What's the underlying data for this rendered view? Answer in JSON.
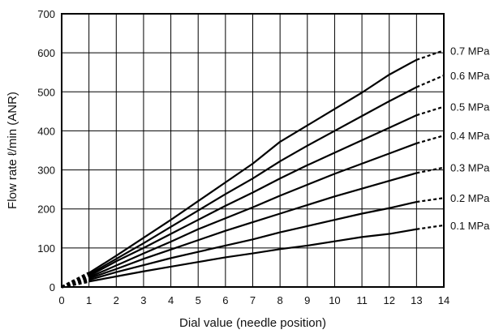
{
  "chart_data": {
    "type": "line",
    "title": "",
    "xlabel": "Dial value (needle position)",
    "ylabel": "Flow rate ℓ/min (ANR)",
    "xlim": [
      0,
      14
    ],
    "ylim": [
      0,
      700
    ],
    "x_ticks": [
      "0",
      "1",
      "2",
      "3",
      "4",
      "5",
      "6",
      "7",
      "8",
      "9",
      "10",
      "11",
      "12",
      "13",
      "14"
    ],
    "y_ticks": [
      "0",
      "100",
      "200",
      "300",
      "400",
      "500",
      "600",
      "700"
    ],
    "grid": true,
    "legend": "right-edge labels",
    "x": [
      1,
      2,
      3,
      4,
      5,
      6,
      7,
      8,
      9,
      10,
      11,
      12,
      13
    ],
    "dashed_extension_to_x": 14,
    "series": [
      {
        "name": "0.1 MPa",
        "values": [
          14,
          27,
          40,
          52,
          64,
          76,
          86,
          97,
          106,
          117,
          128,
          136,
          148
        ],
        "end_value": 158
      },
      {
        "name": "0.2 MPa",
        "values": [
          18,
          38,
          56,
          74,
          90,
          106,
          122,
          140,
          156,
          172,
          188,
          202,
          218
        ],
        "end_value": 228
      },
      {
        "name": "0.3 MPa",
        "values": [
          22,
          46,
          72,
          96,
          120,
          144,
          166,
          188,
          210,
          232,
          252,
          272,
          292
        ],
        "end_value": 306
      },
      {
        "name": "0.4 MPa",
        "values": [
          25,
          55,
          86,
          116,
          148,
          176,
          204,
          234,
          262,
          290,
          316,
          342,
          368
        ],
        "end_value": 388
      },
      {
        "name": "0.5 MPa",
        "values": [
          28,
          66,
          100,
          136,
          172,
          208,
          242,
          278,
          312,
          344,
          376,
          408,
          440
        ],
        "end_value": 462
      },
      {
        "name": "0.6 MPa",
        "values": [
          32,
          72,
          112,
          154,
          196,
          238,
          278,
          322,
          362,
          400,
          438,
          476,
          512
        ],
        "end_value": 542
      },
      {
        "name": "0.7 MPa",
        "values": [
          36,
          80,
          126,
          172,
          220,
          268,
          316,
          372,
          414,
          456,
          498,
          544,
          582
        ],
        "end_value": 606
      }
    ]
  }
}
